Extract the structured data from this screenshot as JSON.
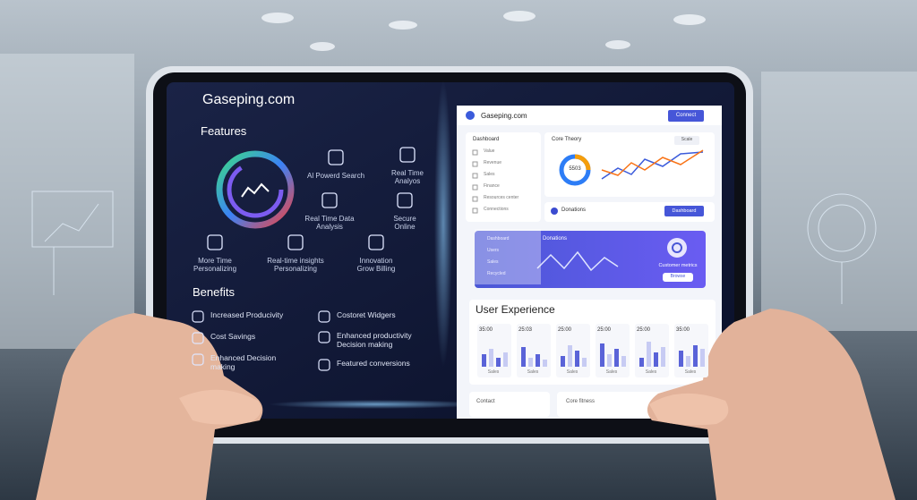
{
  "header": {
    "brand": "Gaseping.com"
  },
  "features": {
    "title": "Features",
    "items": [
      "Al Powerd Search",
      "Real Time\nAnalyos",
      "Real Time Data\nAnalysis",
      "Secure\nOnline",
      "More Time\nPersonalizing",
      "Real-time insights\nPersonalizing",
      "Innovation\nGrow Billing"
    ]
  },
  "benefits": {
    "title": "Benefits",
    "items": [
      "Increased Producivity",
      "Costoret Widgers",
      "Cost Savings",
      "Enhanced productivity\nDecision making",
      "Enhanced Decision\nmaking",
      "Featured conversions"
    ]
  },
  "dashboard": {
    "brand": "Gaseping.com",
    "connect_button": "Connect",
    "sidebar": {
      "title": "Dashboard",
      "items": [
        "Value",
        "Revenue",
        "Sales",
        "Finance",
        "Resources center",
        "Connections"
      ]
    },
    "chart_card": {
      "title": "Core Theory",
      "button": "Scale",
      "donut_value": "5503"
    },
    "profile_row": {
      "label": "Donations",
      "button": "Dashboard"
    },
    "banner": {
      "title": "Donations",
      "caption": "Customer metrics",
      "button": "Browse",
      "menu": [
        "Dashboard",
        "Users",
        "Sales",
        "Recycled"
      ]
    },
    "user_experience": {
      "title": "User Experience",
      "columns": [
        {
          "value": "35:00",
          "label": "Sales"
        },
        {
          "value": "25:03",
          "label": "Sales"
        },
        {
          "value": "25:00",
          "label": "Sales"
        },
        {
          "value": "25:00",
          "label": "Sales"
        },
        {
          "value": "25:00",
          "label": "Sales"
        },
        {
          "value": "35:00",
          "label": "Sales"
        }
      ]
    },
    "footer": {
      "left": "Contact",
      "right": "Core fitness"
    }
  }
}
